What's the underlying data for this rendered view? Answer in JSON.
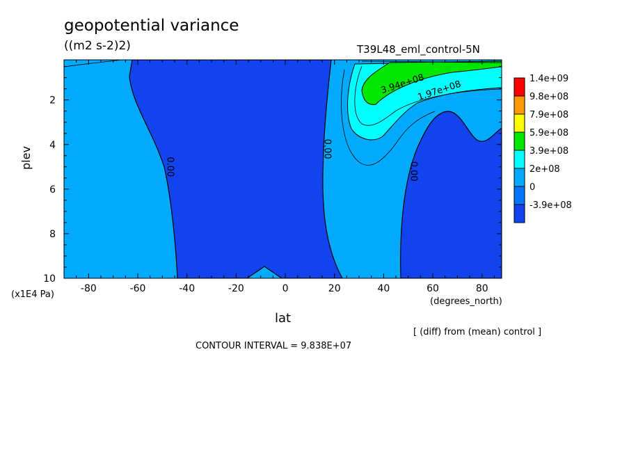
{
  "header": {
    "title": "geopotential variance",
    "units": "((m2 s-2)2)",
    "run_label": "T39L48_eml_control-5N"
  },
  "footer": {
    "diff_note": "[ (diff) from (mean) control ]",
    "contour_interval": "CONTOUR INTERVAL = 9.838E+07"
  },
  "chart_data": {
    "type": "contour",
    "xlabel": "lat",
    "x_unit_label": "(degrees_north)",
    "ylabel": "plev",
    "y_unit_label": "(x1E4 Pa)",
    "xlim": [
      -90,
      88
    ],
    "ylim": [
      10,
      0.2
    ],
    "y_reversed": true,
    "xticks": [
      -80,
      -60,
      -40,
      -20,
      0,
      20,
      40,
      60,
      80
    ],
    "yticks": [
      2,
      4,
      6,
      8,
      10
    ],
    "contour_labels": [
      {
        "text": "0.00",
        "lat": -48,
        "plev": 5.0
      },
      {
        "text": "0.00",
        "lat": 16,
        "plev": 4.2
      },
      {
        "text": "0.00",
        "lat": 51,
        "plev": 5.2
      },
      {
        "text": "3.94e+08",
        "lat": 48,
        "plev": 1.4
      },
      {
        "text": "1.97e+08",
        "lat": 63,
        "plev": 1.7
      }
    ],
    "colorbar": {
      "labels": [
        "1.4e+09",
        "9.8e+08",
        "7.9e+08",
        "5.9e+08",
        "3.9e+08",
        "2e+08",
        "0",
        "-3.9e+08"
      ],
      "colors": [
        "#ff0000",
        "#ff9900",
        "#ffff00",
        "#00e600",
        "#00ffff",
        "#00aaff",
        "#0077ff",
        "#1144ee"
      ]
    }
  }
}
